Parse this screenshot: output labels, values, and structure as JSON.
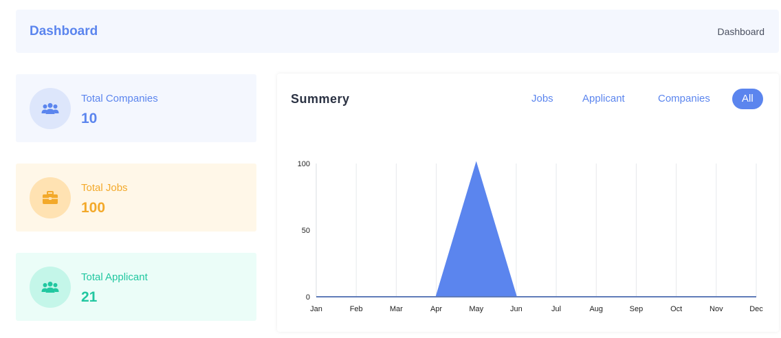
{
  "header": {
    "title": "Dashboard",
    "breadcrumb": "Dashboard"
  },
  "stats": [
    {
      "label": "Total Companies",
      "value": "10",
      "icon": "users-icon",
      "color": "#5b85ee"
    },
    {
      "label": "Total Jobs",
      "value": "100",
      "icon": "briefcase-icon",
      "color": "#f3a92a"
    },
    {
      "label": "Total Applicant",
      "value": "21",
      "icon": "users-icon",
      "color": "#21c7a0"
    }
  ],
  "summary": {
    "title": "Summery",
    "filters": [
      "Jobs",
      "Applicant",
      "Companies",
      "All"
    ],
    "active_filter": "All"
  },
  "chart_data": {
    "type": "area",
    "categories": [
      "Jan",
      "Feb",
      "Mar",
      "Apr",
      "May",
      "Jun",
      "Jul",
      "Aug",
      "Sep",
      "Oct",
      "Nov",
      "Dec"
    ],
    "values": [
      0,
      0,
      0,
      0,
      100,
      0,
      0,
      0,
      0,
      0,
      0,
      0
    ],
    "ylim": [
      0,
      100
    ],
    "yticks": [
      "0",
      "50",
      "100"
    ],
    "grid": "vertical",
    "color": "#5b85ee"
  }
}
